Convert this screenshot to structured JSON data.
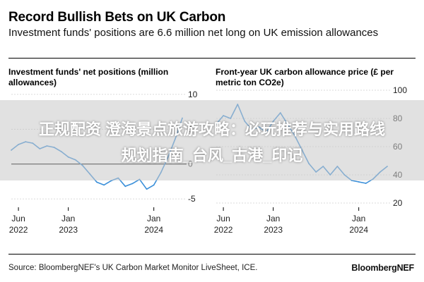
{
  "header": {
    "title": "Record Bullish Bets on UK Carbon",
    "subtitle": "Investment funds' positions are 6.6 million net long on UK emission allowances"
  },
  "overlay": {
    "line1": "正规配资 澄海景点旅游攻略：必玩推荐与实用路线",
    "line2": "规划指南_台风_古港_印记"
  },
  "footer": {
    "source": "Source: BloombergNEF's UK Carbon Market Monitor LiveSheet, ICE.",
    "brand": "BloombergNEF"
  },
  "colors": {
    "line": "#3a8fd9",
    "zero": "#000000",
    "grid": "#cfcfcf",
    "text": "#222222"
  },
  "chart_data": [
    {
      "type": "line",
      "title": "Investment funds' net positions (million allowances)",
      "x_ticks": [
        {
          "label": [
            "Jun",
            "2022"
          ],
          "x": "2022-06"
        },
        {
          "label": [
            "Jan",
            "2023"
          ],
          "x": "2023-01"
        },
        {
          "label": [
            "Jan",
            "2024"
          ],
          "x": "2024-01"
        }
      ],
      "y_ticks": [
        10,
        5,
        0,
        -5
      ],
      "ylim": [
        -6,
        11
      ],
      "y_axis_side": "right",
      "zero_line": true,
      "series": [
        {
          "x": [
            "2022-05",
            "2022-06",
            "2022-07",
            "2022-08",
            "2022-09",
            "2022-10",
            "2022-11",
            "2022-12",
            "2023-01",
            "2023-02",
            "2023-03",
            "2023-04",
            "2023-05",
            "2023-06",
            "2023-07",
            "2023-08",
            "2023-09",
            "2023-10",
            "2023-11",
            "2023-12",
            "2024-01",
            "2024-02",
            "2024-03",
            "2024-04",
            "2024-05"
          ],
          "values": [
            2.0,
            2.8,
            3.2,
            3.0,
            2.2,
            2.6,
            2.4,
            1.8,
            1.0,
            0.6,
            -0.2,
            -1.4,
            -2.6,
            -3.0,
            -2.4,
            -2.0,
            -3.2,
            -2.8,
            -2.2,
            -3.6,
            -3.0,
            -1.2,
            1.0,
            3.6,
            6.6
          ]
        }
      ]
    },
    {
      "type": "line",
      "title": "Front-year UK carbon allowance price (£ per metric ton CO2e)",
      "x_ticks": [
        {
          "label": [
            "Jun",
            "2022"
          ],
          "x": "2022-06"
        },
        {
          "label": [
            "Jan",
            "2023"
          ],
          "x": "2023-01"
        },
        {
          "label": [
            "Jan",
            "2024"
          ],
          "x": "2024-01"
        }
      ],
      "y_ticks": [
        100,
        80,
        60,
        40,
        20
      ],
      "ylim": [
        18,
        102
      ],
      "y_axis_side": "right",
      "zero_line": false,
      "series": [
        {
          "x": [
            "2022-05",
            "2022-06",
            "2022-07",
            "2022-08",
            "2022-09",
            "2022-10",
            "2022-11",
            "2022-12",
            "2023-01",
            "2023-02",
            "2023-03",
            "2023-04",
            "2023-05",
            "2023-06",
            "2023-07",
            "2023-08",
            "2023-09",
            "2023-10",
            "2023-11",
            "2023-12",
            "2024-01",
            "2024-02",
            "2024-03",
            "2024-04",
            "2024-05"
          ],
          "values": [
            76,
            82,
            80,
            90,
            78,
            72,
            74,
            70,
            78,
            84,
            76,
            68,
            58,
            48,
            42,
            46,
            40,
            46,
            40,
            36,
            35,
            34,
            37,
            42,
            46
          ]
        }
      ]
    }
  ]
}
